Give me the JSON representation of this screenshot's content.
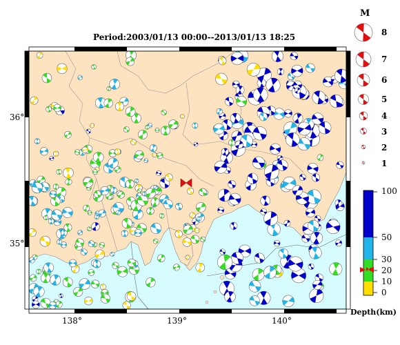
{
  "title": "Period:2003/01/13 00:00--2013/01/13 18:25",
  "map": {
    "lat_labels": [
      "36°",
      "35°"
    ],
    "lon_labels": [
      "138°",
      "139°",
      "140°"
    ],
    "land_color": "#fde3bf",
    "sea_color": "#d6fcff",
    "epicenter_marker": "red-bowtie-icon"
  },
  "magnitude_legend": {
    "header": "M",
    "levels": [
      "8",
      "7",
      "6",
      "5",
      "4",
      "3",
      "2",
      "1"
    ]
  },
  "depth_legend": {
    "title": "Depth(km)",
    "ticks": [
      "100",
      "50",
      "30",
      "20",
      "10",
      "0"
    ],
    "bands": [
      {
        "from": 50,
        "to": 100,
        "color": "#0000c8"
      },
      {
        "from": 30,
        "to": 50,
        "color": "#22b4e8"
      },
      {
        "from": 10,
        "to": 30,
        "color": "#33dd22"
      },
      {
        "from": 0,
        "to": 10,
        "color": "#ffdd00"
      }
    ]
  }
}
